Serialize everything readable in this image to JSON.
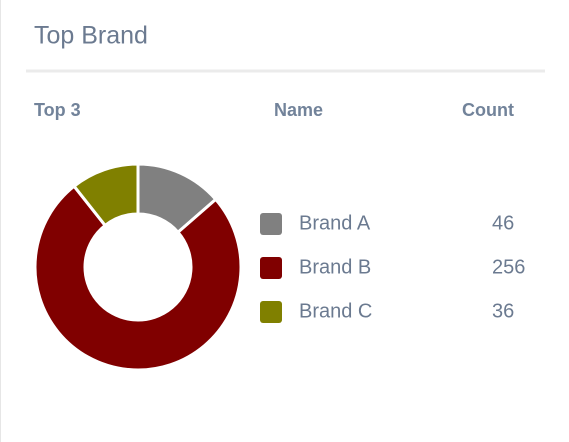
{
  "chart_data": {
    "type": "pie",
    "title": "Top Brand",
    "donut": true,
    "headers": [
      "Top 3",
      "Name",
      "Count"
    ],
    "categories": [
      "Brand A",
      "Brand B",
      "Brand C"
    ],
    "values": [
      46,
      256,
      36
    ],
    "colors": [
      "#808080",
      "#800000",
      "#808000"
    ]
  }
}
